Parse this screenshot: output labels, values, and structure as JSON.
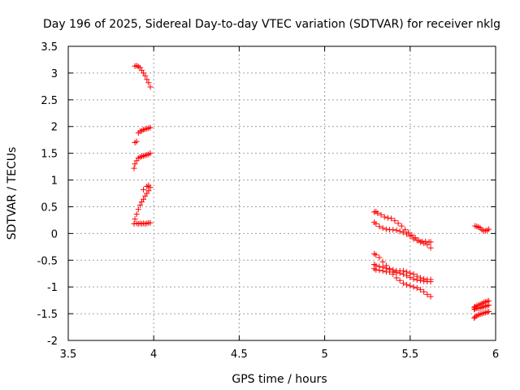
{
  "chart_data": {
    "type": "scatter",
    "title": "Day 196 of 2025, Sidereal Day-to-day VTEC variation (SDTVAR) for receiver nklg",
    "xlabel": "GPS time / hours",
    "ylabel": "SDTVAR / TECUs",
    "xlim": [
      3.5,
      6
    ],
    "ylim": [
      -2,
      3.5
    ],
    "xticks": [
      "3.5",
      "4",
      "4.5",
      "5",
      "5.5",
      "6"
    ],
    "yticks": [
      "3.5",
      "3",
      "2.5",
      "2",
      "1.5",
      "1",
      "0.5",
      "0",
      "-0.5",
      "-1",
      "-1.5",
      "-2"
    ],
    "xtick_values": [
      3.5,
      4,
      4.5,
      5,
      5.5,
      6
    ],
    "ytick_values": [
      3.5,
      3,
      2.5,
      2,
      1.5,
      1,
      0.5,
      0,
      -0.5,
      -1,
      -1.5,
      -2
    ],
    "grid": true,
    "marker": "+",
    "color": "#ff0000",
    "series": [
      {
        "points": [
          [
            3.89,
            3.13
          ],
          [
            3.9,
            3.14
          ],
          [
            3.91,
            3.12
          ],
          [
            3.92,
            3.1
          ],
          [
            3.93,
            3.05
          ],
          [
            3.94,
            3.0
          ],
          [
            3.95,
            2.95
          ],
          [
            3.96,
            2.88
          ],
          [
            3.97,
            2.82
          ],
          [
            3.98,
            2.74
          ],
          [
            3.89,
            1.7
          ],
          [
            3.9,
            1.72
          ],
          [
            3.91,
            1.88
          ],
          [
            3.92,
            1.91
          ],
          [
            3.93,
            1.92
          ],
          [
            3.94,
            1.94
          ],
          [
            3.95,
            1.95
          ],
          [
            3.96,
            1.96
          ],
          [
            3.97,
            1.97
          ],
          [
            3.98,
            1.98
          ],
          [
            3.885,
            1.22
          ],
          [
            3.89,
            1.3
          ],
          [
            3.9,
            1.36
          ],
          [
            3.91,
            1.41
          ],
          [
            3.92,
            1.43
          ],
          [
            3.93,
            1.44
          ],
          [
            3.94,
            1.45
          ],
          [
            3.95,
            1.46
          ],
          [
            3.96,
            1.47
          ],
          [
            3.97,
            1.48
          ],
          [
            3.98,
            1.5
          ],
          [
            3.89,
            0.27
          ],
          [
            3.9,
            0.36
          ],
          [
            3.91,
            0.45
          ],
          [
            3.92,
            0.53
          ],
          [
            3.93,
            0.59
          ],
          [
            3.94,
            0.64
          ],
          [
            3.95,
            0.7
          ],
          [
            3.96,
            0.75
          ],
          [
            3.97,
            0.8
          ],
          [
            3.98,
            0.86
          ],
          [
            3.94,
            0.82
          ],
          [
            3.96,
            0.88
          ],
          [
            3.97,
            0.9
          ],
          [
            3.885,
            0.18
          ],
          [
            3.9,
            0.19
          ],
          [
            3.91,
            0.18
          ],
          [
            3.92,
            0.19
          ],
          [
            3.93,
            0.18
          ],
          [
            3.94,
            0.19
          ],
          [
            3.95,
            0.18
          ],
          [
            3.96,
            0.19
          ],
          [
            3.97,
            0.2
          ],
          [
            3.98,
            0.2
          ]
        ]
      },
      {
        "points": [
          [
            5.29,
            0.4
          ],
          [
            5.3,
            0.41
          ],
          [
            5.31,
            0.38
          ],
          [
            5.33,
            0.35
          ],
          [
            5.35,
            0.31
          ],
          [
            5.37,
            0.29
          ],
          [
            5.39,
            0.28
          ],
          [
            5.41,
            0.24
          ],
          [
            5.43,
            0.19
          ],
          [
            5.45,
            0.14
          ],
          [
            5.47,
            0.07
          ],
          [
            5.49,
            0.02
          ],
          [
            5.51,
            -0.03
          ],
          [
            5.53,
            -0.08
          ],
          [
            5.55,
            -0.13
          ],
          [
            5.57,
            -0.15
          ],
          [
            5.59,
            -0.15
          ],
          [
            5.61,
            -0.16
          ],
          [
            5.62,
            -0.16
          ],
          [
            5.29,
            0.21
          ],
          [
            5.3,
            0.18
          ],
          [
            5.32,
            0.13
          ],
          [
            5.34,
            0.1
          ],
          [
            5.36,
            0.08
          ],
          [
            5.38,
            0.07
          ],
          [
            5.4,
            0.07
          ],
          [
            5.42,
            0.06
          ],
          [
            5.44,
            0.04
          ],
          [
            5.46,
            0.02
          ],
          [
            5.48,
            -0.01
          ],
          [
            5.5,
            -0.05
          ],
          [
            5.52,
            -0.1
          ],
          [
            5.54,
            -0.13
          ],
          [
            5.56,
            -0.16
          ],
          [
            5.58,
            -0.18
          ],
          [
            5.6,
            -0.21
          ],
          [
            5.62,
            -0.27
          ],
          [
            5.29,
            -0.38
          ],
          [
            5.3,
            -0.4
          ],
          [
            5.32,
            -0.45
          ],
          [
            5.34,
            -0.53
          ],
          [
            5.36,
            -0.6
          ],
          [
            5.38,
            -0.68
          ],
          [
            5.4,
            -0.76
          ],
          [
            5.42,
            -0.83
          ],
          [
            5.44,
            -0.88
          ],
          [
            5.46,
            -0.93
          ],
          [
            5.48,
            -0.96
          ],
          [
            5.5,
            -0.98
          ],
          [
            5.52,
            -1.0
          ],
          [
            5.54,
            -1.02
          ],
          [
            5.56,
            -1.05
          ],
          [
            5.58,
            -1.09
          ],
          [
            5.6,
            -1.14
          ],
          [
            5.62,
            -1.18
          ],
          [
            5.29,
            -0.58
          ],
          [
            5.3,
            -0.6
          ],
          [
            5.32,
            -0.62
          ],
          [
            5.34,
            -0.63
          ],
          [
            5.36,
            -0.65
          ],
          [
            5.38,
            -0.66
          ],
          [
            5.4,
            -0.68
          ],
          [
            5.42,
            -0.7
          ],
          [
            5.44,
            -0.7
          ],
          [
            5.46,
            -0.7
          ],
          [
            5.48,
            -0.72
          ],
          [
            5.5,
            -0.74
          ],
          [
            5.52,
            -0.76
          ],
          [
            5.54,
            -0.8
          ],
          [
            5.56,
            -0.83
          ],
          [
            5.58,
            -0.85
          ],
          [
            5.6,
            -0.86
          ],
          [
            5.62,
            -0.86
          ],
          [
            5.29,
            -0.66
          ],
          [
            5.3,
            -0.68
          ],
          [
            5.32,
            -0.69
          ],
          [
            5.34,
            -0.7
          ],
          [
            5.36,
            -0.72
          ],
          [
            5.38,
            -0.72
          ],
          [
            5.4,
            -0.72
          ],
          [
            5.42,
            -0.73
          ],
          [
            5.44,
            -0.74
          ],
          [
            5.46,
            -0.76
          ],
          [
            5.48,
            -0.79
          ],
          [
            5.5,
            -0.82
          ],
          [
            5.52,
            -0.85
          ],
          [
            5.54,
            -0.87
          ],
          [
            5.56,
            -0.88
          ],
          [
            5.58,
            -0.89
          ],
          [
            5.6,
            -0.9
          ],
          [
            5.62,
            -0.9
          ]
        ]
      },
      {
        "points": [
          [
            5.88,
            0.14
          ],
          [
            5.89,
            0.13
          ],
          [
            5.9,
            0.12
          ],
          [
            5.91,
            0.1
          ],
          [
            5.92,
            0.07
          ],
          [
            5.93,
            0.05
          ],
          [
            5.94,
            0.05
          ],
          [
            5.95,
            0.06
          ],
          [
            5.96,
            0.08
          ],
          [
            5.875,
            -1.58
          ],
          [
            5.88,
            -1.56
          ],
          [
            5.89,
            -1.54
          ],
          [
            5.9,
            -1.52
          ],
          [
            5.91,
            -1.51
          ],
          [
            5.92,
            -1.5
          ],
          [
            5.93,
            -1.49
          ],
          [
            5.94,
            -1.48
          ],
          [
            5.95,
            -1.47
          ],
          [
            5.96,
            -1.46
          ],
          [
            5.875,
            -1.42
          ],
          [
            5.88,
            -1.41
          ],
          [
            5.89,
            -1.4
          ],
          [
            5.9,
            -1.4
          ],
          [
            5.91,
            -1.39
          ],
          [
            5.92,
            -1.38
          ],
          [
            5.93,
            -1.37
          ],
          [
            5.94,
            -1.36
          ],
          [
            5.95,
            -1.35
          ],
          [
            5.96,
            -1.34
          ],
          [
            5.875,
            -1.38
          ],
          [
            5.88,
            -1.37
          ],
          [
            5.89,
            -1.35
          ],
          [
            5.9,
            -1.34
          ],
          [
            5.91,
            -1.33
          ],
          [
            5.92,
            -1.31
          ],
          [
            5.93,
            -1.29
          ],
          [
            5.94,
            -1.28
          ],
          [
            5.95,
            -1.27
          ],
          [
            5.96,
            -1.26
          ]
        ]
      }
    ]
  }
}
